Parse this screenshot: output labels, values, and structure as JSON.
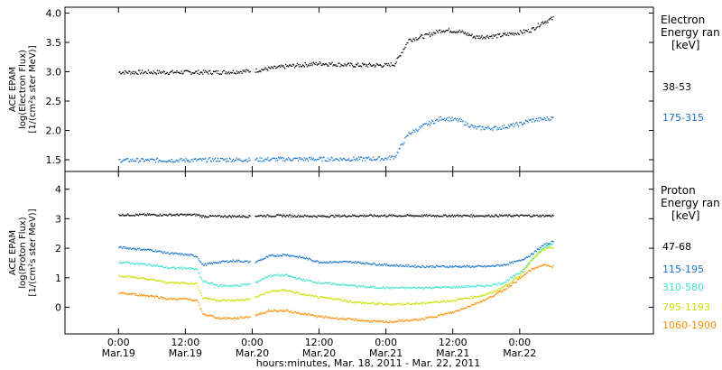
{
  "chart_data": [
    {
      "type": "scatter",
      "panel": "electron",
      "ylabel": [
        "ACE EPAM",
        "log(Electron Flux)",
        "[1/(cm²s ster MeV)]"
      ],
      "ylim": [
        1.3,
        4.1
      ],
      "yticks": [
        1.5,
        2.0,
        2.5,
        3.0,
        3.5,
        4.0
      ],
      "ytick_labels": [
        "1.5",
        "2.0",
        "2.5",
        "3.0",
        "3.5",
        "4.0"
      ],
      "legend_title": [
        "Electron",
        "Energy ran",
        "[keV]"
      ],
      "series": [
        {
          "name": "38-53",
          "color": "#000000",
          "points": [
            [
              0.0,
              3.0
            ],
            [
              6.0,
              3.0
            ],
            [
              12.0,
              3.0
            ],
            [
              18.0,
              3.0
            ],
            [
              23.5,
              3.02
            ],
            [
              24.5,
              3.03
            ],
            [
              30.0,
              3.1
            ],
            [
              36.0,
              3.15
            ],
            [
              42.0,
              3.12
            ],
            [
              48.0,
              3.12
            ],
            [
              49.5,
              3.14
            ],
            [
              50.5,
              3.3
            ],
            [
              52.0,
              3.55
            ],
            [
              55.0,
              3.62
            ],
            [
              58.0,
              3.72
            ],
            [
              61.0,
              3.7
            ],
            [
              64.0,
              3.6
            ],
            [
              68.0,
              3.62
            ],
            [
              72.0,
              3.68
            ],
            [
              74.0,
              3.72
            ],
            [
              76.0,
              3.85
            ],
            [
              78.0,
              3.92
            ]
          ]
        },
        {
          "name": "175-315",
          "color": "#1874cd",
          "points": [
            [
              0.0,
              1.5
            ],
            [
              6.0,
              1.5
            ],
            [
              12.0,
              1.5
            ],
            [
              18.0,
              1.51
            ],
            [
              23.5,
              1.51
            ],
            [
              24.5,
              1.51
            ],
            [
              30.0,
              1.52
            ],
            [
              36.0,
              1.52
            ],
            [
              42.0,
              1.52
            ],
            [
              48.0,
              1.53
            ],
            [
              49.5,
              1.56
            ],
            [
              50.5,
              1.72
            ],
            [
              52.0,
              1.95
            ],
            [
              55.0,
              2.1
            ],
            [
              58.0,
              2.22
            ],
            [
              61.0,
              2.18
            ],
            [
              64.0,
              2.05
            ],
            [
              68.0,
              2.05
            ],
            [
              72.0,
              2.12
            ],
            [
              74.0,
              2.18
            ],
            [
              76.0,
              2.2
            ],
            [
              78.0,
              2.22
            ]
          ]
        }
      ]
    },
    {
      "type": "scatter",
      "panel": "proton",
      "ylabel": [
        "ACE EPAM",
        "log(Proton Flux)",
        "[1/(cm²s ster MeV)]"
      ],
      "ylim": [
        -0.9,
        4.6
      ],
      "yticks": [
        0,
        1,
        2,
        3,
        4
      ],
      "ytick_labels": [
        "0",
        "1",
        "2",
        "3",
        "4"
      ],
      "legend_title": [
        "Proton",
        "Energy ran",
        "[keV]"
      ],
      "series": [
        {
          "name": "47-68",
          "color": "#000000",
          "points": [
            [
              0.0,
              3.15
            ],
            [
              6.0,
              3.15
            ],
            [
              12.0,
              3.15
            ],
            [
              14.0,
              3.15
            ],
            [
              15.0,
              3.1
            ],
            [
              18.0,
              3.1
            ],
            [
              23.5,
              3.1
            ],
            [
              24.5,
              3.12
            ],
            [
              30.0,
              3.12
            ],
            [
              36.0,
              3.1
            ],
            [
              42.0,
              3.12
            ],
            [
              48.0,
              3.12
            ],
            [
              54.0,
              3.12
            ],
            [
              60.0,
              3.12
            ],
            [
              66.0,
              3.12
            ],
            [
              72.0,
              3.12
            ],
            [
              78.0,
              3.12
            ]
          ]
        },
        {
          "name": "115-195",
          "color": "#1874cd",
          "points": [
            [
              0.0,
              2.05
            ],
            [
              6.0,
              1.95
            ],
            [
              9.0,
              1.85
            ],
            [
              12.0,
              1.8
            ],
            [
              14.0,
              1.75
            ],
            [
              15.0,
              1.45
            ],
            [
              18.0,
              1.55
            ],
            [
              21.0,
              1.6
            ],
            [
              23.5,
              1.55
            ],
            [
              24.5,
              1.55
            ],
            [
              27.0,
              1.75
            ],
            [
              30.0,
              1.8
            ],
            [
              33.0,
              1.7
            ],
            [
              36.0,
              1.55
            ],
            [
              39.0,
              1.55
            ],
            [
              42.0,
              1.55
            ],
            [
              45.0,
              1.5
            ],
            [
              48.0,
              1.45
            ],
            [
              54.0,
              1.4
            ],
            [
              60.0,
              1.4
            ],
            [
              66.0,
              1.4
            ],
            [
              69.0,
              1.45
            ],
            [
              72.0,
              1.6
            ],
            [
              74.0,
              1.8
            ],
            [
              76.0,
              2.1
            ],
            [
              78.0,
              2.25
            ]
          ]
        },
        {
          "name": "310-580",
          "color": "#40e0d0",
          "points": [
            [
              0.0,
              1.55
            ],
            [
              6.0,
              1.45
            ],
            [
              9.0,
              1.35
            ],
            [
              12.0,
              1.35
            ],
            [
              14.0,
              1.3
            ],
            [
              15.0,
              0.9
            ],
            [
              18.0,
              0.75
            ],
            [
              21.0,
              0.75
            ],
            [
              23.5,
              0.8
            ],
            [
              24.5,
              0.85
            ],
            [
              27.0,
              1.1
            ],
            [
              30.0,
              1.1
            ],
            [
              33.0,
              0.95
            ],
            [
              36.0,
              0.85
            ],
            [
              39.0,
              0.8
            ],
            [
              42.0,
              0.75
            ],
            [
              45.0,
              0.7
            ],
            [
              48.0,
              0.68
            ],
            [
              54.0,
              0.68
            ],
            [
              60.0,
              0.7
            ],
            [
              66.0,
              0.75
            ],
            [
              69.0,
              0.85
            ],
            [
              72.0,
              1.2
            ],
            [
              74.0,
              1.6
            ],
            [
              76.0,
              2.0
            ],
            [
              78.0,
              2.2
            ]
          ]
        },
        {
          "name": "795-1193",
          "color": "#c8e000",
          "points": [
            [
              0.0,
              1.1
            ],
            [
              6.0,
              0.95
            ],
            [
              9.0,
              0.85
            ],
            [
              12.0,
              0.85
            ],
            [
              14.0,
              0.8
            ],
            [
              15.0,
              0.35
            ],
            [
              18.0,
              0.25
            ],
            [
              21.0,
              0.25
            ],
            [
              23.5,
              0.3
            ],
            [
              24.5,
              0.35
            ],
            [
              27.0,
              0.55
            ],
            [
              30.0,
              0.6
            ],
            [
              33.0,
              0.45
            ],
            [
              36.0,
              0.35
            ],
            [
              39.0,
              0.3
            ],
            [
              42.0,
              0.2
            ],
            [
              45.0,
              0.15
            ],
            [
              48.0,
              0.12
            ],
            [
              54.0,
              0.15
            ],
            [
              60.0,
              0.25
            ],
            [
              66.0,
              0.45
            ],
            [
              69.0,
              0.7
            ],
            [
              72.0,
              1.1
            ],
            [
              74.0,
              1.6
            ],
            [
              76.0,
              1.95
            ],
            [
              78.0,
              2.05
            ]
          ]
        },
        {
          "name": "1060-1900",
          "color": "#ff8c00",
          "points": [
            [
              0.0,
              0.5
            ],
            [
              6.0,
              0.4
            ],
            [
              9.0,
              0.3
            ],
            [
              12.0,
              0.3
            ],
            [
              14.0,
              0.25
            ],
            [
              15.0,
              -0.2
            ],
            [
              18.0,
              -0.35
            ],
            [
              21.0,
              -0.35
            ],
            [
              23.5,
              -0.3
            ],
            [
              24.5,
              -0.25
            ],
            [
              27.0,
              -0.1
            ],
            [
              30.0,
              -0.1
            ],
            [
              33.0,
              -0.2
            ],
            [
              36.0,
              -0.3
            ],
            [
              39.0,
              -0.35
            ],
            [
              42.0,
              -0.4
            ],
            [
              45.0,
              -0.45
            ],
            [
              48.0,
              -0.48
            ],
            [
              54.0,
              -0.4
            ],
            [
              60.0,
              -0.15
            ],
            [
              66.0,
              0.3
            ],
            [
              69.0,
              0.6
            ],
            [
              72.0,
              1.0
            ],
            [
              74.0,
              1.3
            ],
            [
              76.0,
              1.45
            ],
            [
              78.0,
              1.4
            ]
          ]
        }
      ]
    }
  ],
  "x_axis": {
    "xlabel": "hours:minutes, Mar. 18, 2011 - Mar. 22, 2011",
    "xlim": [
      -9.6,
      96.0
    ],
    "ticks": [
      {
        "x": 0,
        "time": "0:00",
        "date": "Mar.19"
      },
      {
        "x": 12,
        "time": "12:00",
        "date": "Mar.19"
      },
      {
        "x": 24,
        "time": "0:00",
        "date": "Mar.20"
      },
      {
        "x": 36,
        "time": "12:00",
        "date": "Mar.20"
      },
      {
        "x": 48,
        "time": "0:00",
        "date": "Mar.21"
      },
      {
        "x": 60,
        "time": "12:00",
        "date": "Mar.21"
      },
      {
        "x": 72,
        "time": "0:00",
        "date": "Mar.22"
      }
    ]
  }
}
